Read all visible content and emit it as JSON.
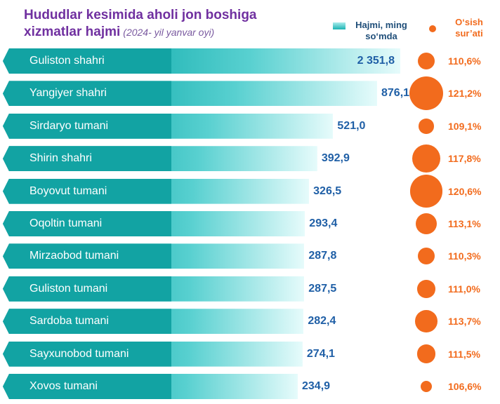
{
  "chart_data": {
    "type": "bar",
    "title": "Hududlar kesimida aholi jon boshiga xizmatlar hajmi",
    "title_lines": [
      "Hududlar kesimida aholi jon boshiga",
      "xizmatlar hajmi"
    ],
    "subtitle": "(2024- yil yanvar oyi)",
    "categories": [
      "Guliston shahri",
      "Yangiyer shahri",
      "Sirdaryo tumani",
      "Shirin shahri",
      "Boyovut tumani",
      "Oqoltin tumani",
      "Mirzaobod tumani",
      "Guliston tumani",
      "Sardoba tumani",
      "Sayxunobod tumani",
      "Xovos tumani"
    ],
    "series": [
      {
        "name": "Hajmi, ming so‘mda",
        "values": [
          2351.8,
          876.1,
          521.0,
          392.9,
          326.5,
          293.4,
          287.8,
          287.5,
          282.4,
          274.1,
          234.9
        ],
        "labels": [
          "2 351,8",
          "876,1",
          "521,0",
          "392,9",
          "326,5",
          "293,4",
          "287,8",
          "287,5",
          "282,4",
          "274,1",
          "234,9"
        ]
      },
      {
        "name": "O‘sish sur’ati",
        "values": [
          110.6,
          121.2,
          109.1,
          117.8,
          120.6,
          113.1,
          110.3,
          111.0,
          113.7,
          111.5,
          106.6
        ],
        "labels": [
          "110,6%",
          "121,2%",
          "109,1%",
          "117,8%",
          "120,6%",
          "113,1%",
          "110,3%",
          "111,0%",
          "113,7%",
          "111,5%",
          "106,6%"
        ]
      }
    ],
    "legend": {
      "volume": [
        "Hajmi, ming",
        "so‘mda"
      ],
      "growth": [
        "O‘sish",
        "sur’ati"
      ],
      "placement": "top-right"
    },
    "colors": {
      "bar": "#18b0b0",
      "bar_dark": "#0f9a9a",
      "value_text": "#1f5fa6",
      "bubble": "#f26b1d",
      "title": "#7030a0"
    },
    "grid": false
  }
}
